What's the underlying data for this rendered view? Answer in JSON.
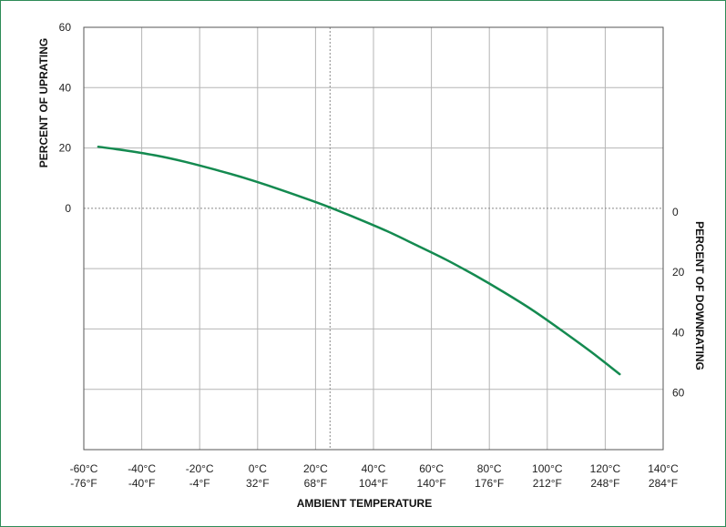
{
  "chart_data": {
    "type": "line",
    "xlabel": "AMBIENT TEMPERATURE",
    "ylabel_left": "PERCENT OF UPRATING",
    "ylabel_right": "PERCENT OF DOWNRATING",
    "x_unit": "°C",
    "xlim": [
      -60,
      140
    ],
    "ylim": [
      -80,
      60
    ],
    "x_ticks": [
      {
        "c": -60,
        "c_label": "-60°C",
        "f_label": "-76°F"
      },
      {
        "c": -40,
        "c_label": "-40°C",
        "f_label": "-40°F"
      },
      {
        "c": -20,
        "c_label": "-20°C",
        "f_label": "-4°F"
      },
      {
        "c": 0,
        "c_label": "0°C",
        "f_label": "32°F"
      },
      {
        "c": 20,
        "c_label": "20°C",
        "f_label": "68°F"
      },
      {
        "c": 40,
        "c_label": "40°C",
        "f_label": "104°F"
      },
      {
        "c": 60,
        "c_label": "60°C",
        "f_label": "140°F"
      },
      {
        "c": 80,
        "c_label": "80°C",
        "f_label": "176°F"
      },
      {
        "c": 100,
        "c_label": "100°C",
        "f_label": "212°F"
      },
      {
        "c": 120,
        "c_label": "120°C",
        "f_label": "248°F"
      },
      {
        "c": 140,
        "c_label": "140°C",
        "f_label": "284°F"
      }
    ],
    "y_ticks_left": [
      {
        "value": 60,
        "label": "60"
      },
      {
        "value": 40,
        "label": "40"
      },
      {
        "value": 20,
        "label": "20"
      },
      {
        "value": 0,
        "label": "0"
      }
    ],
    "y_ticks_right": [
      {
        "value": 0,
        "label": "0"
      },
      {
        "value": -20,
        "label": "20"
      },
      {
        "value": -40,
        "label": "40"
      },
      {
        "value": -60,
        "label": "60"
      }
    ],
    "reference_lines": {
      "x": 25,
      "y": 0,
      "style": "dotted"
    },
    "grid": true,
    "series": [
      {
        "color": "#148a50",
        "x": [
          -55,
          -45,
          -35,
          -25,
          -15,
          -5,
          5,
          15,
          25,
          35,
          45,
          55,
          65,
          75,
          85,
          95,
          105,
          115,
          125
        ],
        "y": [
          20.4,
          19.1,
          17.5,
          15.4,
          12.9,
          10.2,
          7.1,
          3.8,
          0.3,
          -3.6,
          -7.7,
          -12.3,
          -17.0,
          -22.2,
          -27.8,
          -33.8,
          -40.5,
          -47.5,
          -55.0
        ]
      }
    ]
  }
}
